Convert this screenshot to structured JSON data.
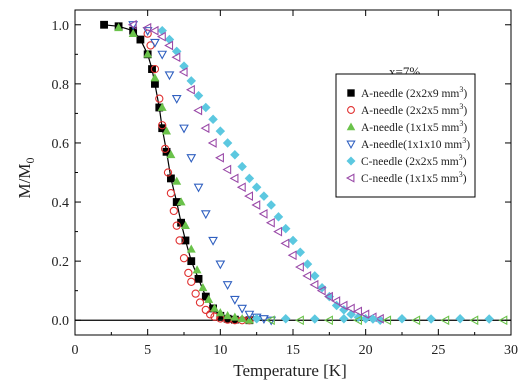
{
  "chart_data": {
    "type": "scatter",
    "xlabel": "Temperature [K]",
    "ylabel": "M/M0",
    "ylabel_main": "M/M",
    "ylabel_sub": "0",
    "xlim": [
      0,
      30
    ],
    "ylim": [
      -0.05,
      1.05
    ],
    "xticks": [
      0,
      5,
      10,
      15,
      20,
      25,
      30
    ],
    "yticks": [
      0.0,
      0.2,
      0.4,
      0.6,
      0.8,
      1.0
    ],
    "xtick_labels": [
      "0",
      "5",
      "10",
      "15",
      "20",
      "25",
      "30"
    ],
    "ytick_labels": [
      "0.0",
      "0.2",
      "0.4",
      "0.6",
      "0.8",
      "1.0"
    ],
    "annotation": "x=7%",
    "legend_position": "top-right",
    "grid": false,
    "series": [
      {
        "name": "A-needle (2x2x9 mm3)",
        "legend_main": "A-needle (2x2x9 mm",
        "legend_sup": "3",
        "legend_end": ")",
        "marker": "square-filled",
        "color": "#000000",
        "x": [
          2.0,
          3.0,
          4.0,
          4.5,
          5.0,
          5.3,
          5.5,
          5.8,
          6.0,
          6.3,
          6.6,
          7.0,
          7.3,
          7.6,
          8.0,
          8.5,
          9.0,
          9.5,
          10.0,
          10.5,
          11.0,
          12.0
        ],
        "y": [
          1.0,
          0.995,
          0.98,
          0.95,
          0.9,
          0.85,
          0.8,
          0.72,
          0.65,
          0.57,
          0.48,
          0.4,
          0.33,
          0.27,
          0.2,
          0.14,
          0.08,
          0.04,
          0.015,
          0.005,
          0.002,
          0.0
        ]
      },
      {
        "name": "A-needle (2x2x5 mm3)",
        "legend_main": "A-needle (2x2x5 mm",
        "legend_sup": "3",
        "legend_end": ")",
        "marker": "circle-open",
        "color": "#e03030",
        "x": [
          5.0,
          5.2,
          5.5,
          5.8,
          6.0,
          6.2,
          6.4,
          6.6,
          6.8,
          7.0,
          7.2,
          7.5,
          7.8,
          8.0,
          8.3,
          8.6,
          9.0,
          9.3,
          9.6,
          10.0,
          10.5,
          11.0,
          11.5,
          12.0
        ],
        "y": [
          0.97,
          0.93,
          0.85,
          0.75,
          0.66,
          0.58,
          0.5,
          0.43,
          0.37,
          0.32,
          0.27,
          0.21,
          0.16,
          0.13,
          0.09,
          0.06,
          0.035,
          0.02,
          0.012,
          0.006,
          0.002,
          0.0,
          0.0,
          0.0
        ]
      },
      {
        "name": "A-needle (1x1x5 mm3)",
        "legend_main": "A-needle (1x1x5 mm",
        "legend_sup": "3",
        "legend_end": ")",
        "marker": "triangle-up-filled",
        "color": "#6ac24a",
        "x": [
          3.0,
          4.0,
          5.0,
          5.5,
          6.0,
          6.3,
          6.6,
          7.0,
          7.3,
          7.6,
          8.0,
          8.4,
          8.8,
          9.2,
          9.6,
          10.0,
          10.5,
          11.0,
          11.5,
          12.0
        ],
        "y": [
          0.99,
          0.97,
          0.9,
          0.82,
          0.72,
          0.64,
          0.56,
          0.47,
          0.4,
          0.32,
          0.24,
          0.17,
          0.11,
          0.07,
          0.04,
          0.025,
          0.015,
          0.01,
          0.005,
          0.0
        ]
      },
      {
        "name": "A-needle(1x1x10 mm3)",
        "legend_main": "A-needle(1x1x10 mm",
        "legend_sup": "3",
        "legend_end": ")",
        "marker": "triangle-down-open",
        "color": "#3060c0",
        "x": [
          4.0,
          5.0,
          5.5,
          6.0,
          6.5,
          7.0,
          7.5,
          8.0,
          8.5,
          9.0,
          9.5,
          10.0,
          10.5,
          11.0,
          11.5,
          12.0,
          12.5,
          13.0,
          13.5
        ],
        "y": [
          1.0,
          0.98,
          0.94,
          0.9,
          0.83,
          0.75,
          0.65,
          0.55,
          0.45,
          0.36,
          0.27,
          0.19,
          0.12,
          0.07,
          0.04,
          0.02,
          0.01,
          0.005,
          0.0
        ]
      },
      {
        "name": "C-needle (2x2x5 mm3)",
        "legend_main": "C-needle (2x2x5 mm",
        "legend_sup": "3",
        "legend_end": ")",
        "marker": "diamond-filled",
        "color": "#5cc8e0",
        "x": [
          6.0,
          6.5,
          7.0,
          7.5,
          8.0,
          8.5,
          9.0,
          9.5,
          10.0,
          10.5,
          11.0,
          11.5,
          12.0,
          12.5,
          13.0,
          13.5,
          14.0,
          14.5,
          15.0,
          15.5,
          16.0,
          16.5,
          17.0,
          17.5,
          18.0,
          18.5,
          19.0,
          19.5,
          20.0,
          21.0
        ],
        "y": [
          0.98,
          0.95,
          0.91,
          0.86,
          0.81,
          0.76,
          0.72,
          0.68,
          0.64,
          0.6,
          0.56,
          0.52,
          0.48,
          0.45,
          0.42,
          0.39,
          0.35,
          0.31,
          0.27,
          0.23,
          0.19,
          0.15,
          0.11,
          0.08,
          0.05,
          0.035,
          0.02,
          0.01,
          0.005,
          0.0
        ]
      },
      {
        "name": "C-needle (1x1x5 mm3)",
        "legend_main": "C-needle (1x1x5 mm",
        "legend_sup": "3",
        "legend_end": ")",
        "marker": "triangle-left-open",
        "color": "#9a4aa8",
        "x": [
          4.0,
          5.0,
          5.5,
          6.0,
          6.5,
          7.0,
          7.5,
          8.0,
          8.5,
          9.0,
          9.5,
          10.0,
          10.5,
          11.0,
          11.5,
          12.0,
          12.5,
          13.0,
          13.5,
          14.0,
          14.5,
          15.0,
          15.5,
          16.0,
          16.5,
          17.0,
          17.5,
          18.0,
          18.5,
          19.0,
          19.5,
          20.0,
          20.5,
          21.0
        ],
        "y": [
          1.0,
          0.99,
          0.98,
          0.96,
          0.93,
          0.89,
          0.84,
          0.78,
          0.71,
          0.65,
          0.6,
          0.55,
          0.51,
          0.48,
          0.45,
          0.42,
          0.39,
          0.36,
          0.33,
          0.3,
          0.26,
          0.22,
          0.18,
          0.15,
          0.12,
          0.1,
          0.08,
          0.065,
          0.05,
          0.04,
          0.03,
          0.02,
          0.01,
          0.005
        ]
      }
    ],
    "baseline_points": {
      "x": [
        12.5,
        13.5,
        14.5,
        15.5,
        16.5,
        17.5,
        18.5,
        19.5,
        20.5,
        21.5,
        22.5,
        23.5,
        24.5,
        25.5,
        26.5,
        27.5,
        28.5,
        29.5
      ],
      "y": [
        0.005,
        0.0,
        0.005,
        0.0,
        0.004,
        0.0,
        0.005,
        0.0,
        0.004,
        0.0,
        0.005,
        0.0,
        0.004,
        0.0,
        0.005,
        0.0,
        0.004,
        0.0
      ]
    }
  }
}
